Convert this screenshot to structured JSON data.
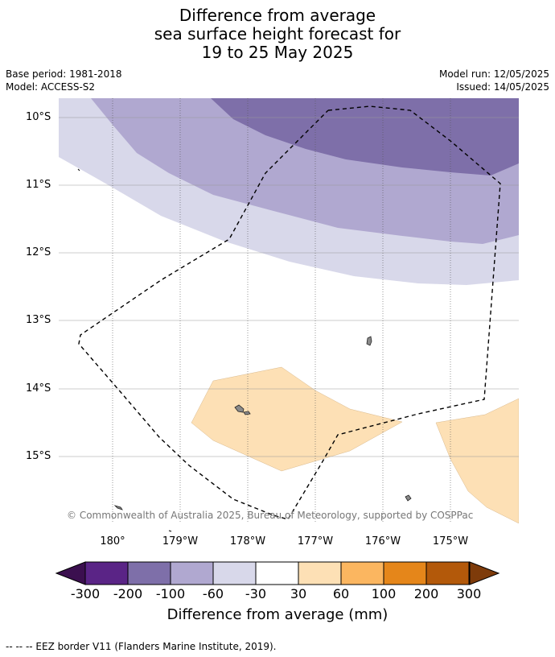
{
  "title": {
    "line1": "Difference from average",
    "line2": "sea surface height forecast for",
    "line3": "19 to 25 May 2025"
  },
  "meta": {
    "base_period": "Base period: 1981-2018",
    "model": "Model: ACCESS-S2",
    "model_run": "Model run: 12/05/2025",
    "issued": "Issued: 14/05/2025"
  },
  "axes": {
    "lat_labels": [
      "10°S",
      "11°S",
      "12°S",
      "13°S",
      "14°S",
      "15°S"
    ],
    "lon_labels": [
      "180°",
      "179°W",
      "178°W",
      "177°W",
      "176°W",
      "175°W"
    ]
  },
  "copyright": "© Commonwealth of Australia 2025, Bureau of Meteorology, supported by COSPPac",
  "legend": {
    "title": "Difference from average (mm)",
    "ticks": [
      "-300",
      "-200",
      "-100",
      "-60",
      "-30",
      "30",
      "60",
      "100",
      "200",
      "300"
    ],
    "colors": {
      "below_-300": "#3b0f4f",
      "-300_-200": "#5a2486",
      "-200_-100": "#7e6fa9",
      "-100_-60": "#b0a8d0",
      "-60_-30": "#d8d8ea",
      "-30_30": "#ffffff",
      "30_60": "#fde0b5",
      "60_100": "#fbb660",
      "100_200": "#e5861a",
      "200_300": "#b3590a",
      "above_300": "#7e3b0a"
    }
  },
  "footnote": "-- -- -- EEZ border V11 (Flanders Marine Institute, 2019).",
  "icons": {
    "eez": "dashed-line",
    "islands": "grey-island-shapes"
  }
}
